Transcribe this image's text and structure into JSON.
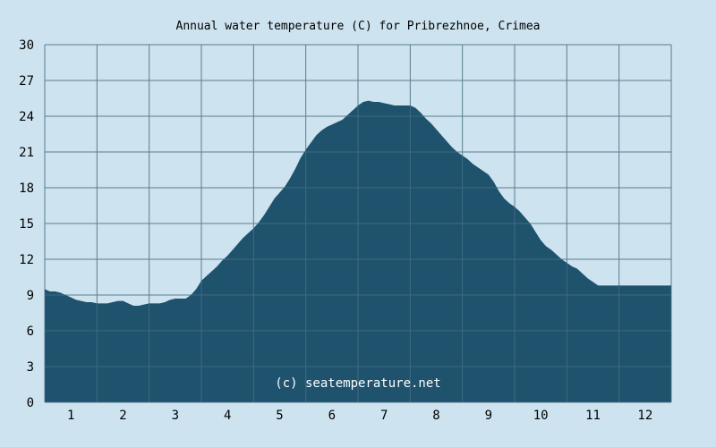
{
  "chart_data": {
    "type": "area",
    "title": "Annual water temperature (C) for Pribrezhnoe, Crimea",
    "xlabel": "",
    "ylabel": "",
    "xlim": [
      0.5,
      12.5
    ],
    "ylim": [
      0,
      30
    ],
    "y_ticks": [
      0,
      3,
      6,
      9,
      12,
      15,
      18,
      21,
      24,
      27,
      30
    ],
    "x_ticks": [
      1,
      2,
      3,
      4,
      5,
      6,
      7,
      8,
      9,
      10,
      11,
      12
    ],
    "grid": true,
    "legend": "none",
    "watermark": "(c) seatemperature.net",
    "colors": {
      "background": "#cde3ef",
      "plot_background": "#cde3ef",
      "fill": "#1f526d",
      "grid_over_fill": "#3d6a82",
      "grid_over_background": "#5a7d90"
    },
    "series": [
      {
        "x": [
          0.5,
          0.6,
          0.7,
          0.8,
          0.9,
          1.0,
          1.1,
          1.2,
          1.3,
          1.4,
          1.5,
          1.6,
          1.7,
          1.8,
          1.9,
          2.0,
          2.1,
          2.2,
          2.3,
          2.4,
          2.5,
          2.6,
          2.7,
          2.8,
          2.9,
          3.0,
          3.1,
          3.2,
          3.3,
          3.4,
          3.5,
          3.6,
          3.7,
          3.8,
          3.9,
          4.0,
          4.1,
          4.2,
          4.3,
          4.4,
          4.5,
          4.6,
          4.7,
          4.8,
          4.9,
          5.0,
          5.1,
          5.2,
          5.3,
          5.4,
          5.5,
          5.6,
          5.7,
          5.8,
          5.9,
          6.0,
          6.1,
          6.2,
          6.3,
          6.4,
          6.5,
          6.6,
          6.7,
          6.8,
          6.9,
          7.0,
          7.1,
          7.2,
          7.3,
          7.4,
          7.5,
          7.6,
          7.7,
          7.8,
          7.9,
          8.0,
          8.1,
          8.2,
          8.3,
          8.4,
          8.5,
          8.6,
          8.7,
          8.8,
          8.9,
          9.0,
          9.1,
          9.2,
          9.3,
          9.4,
          9.5,
          9.6,
          9.7,
          9.8,
          9.9,
          10.0,
          10.1,
          10.2,
          10.3,
          10.4,
          10.5,
          10.6,
          10.7,
          10.8,
          10.9,
          11.0,
          11.1,
          11.2,
          11.3,
          11.4,
          11.5,
          11.6,
          11.7,
          11.8,
          11.9,
          12.0,
          12.1,
          12.2,
          12.3,
          12.4,
          12.5
        ],
        "values": [
          9.5,
          9.3,
          9.3,
          9.2,
          9.0,
          8.8,
          8.6,
          8.5,
          8.4,
          8.4,
          8.3,
          8.3,
          8.3,
          8.4,
          8.5,
          8.5,
          8.3,
          8.1,
          8.1,
          8.2,
          8.3,
          8.3,
          8.3,
          8.4,
          8.6,
          8.7,
          8.7,
          8.7,
          9.0,
          9.5,
          10.2,
          10.6,
          11.0,
          11.4,
          11.9,
          12.3,
          12.8,
          13.3,
          13.8,
          14.2,
          14.6,
          15.1,
          15.7,
          16.4,
          17.1,
          17.6,
          18.1,
          18.8,
          19.6,
          20.5,
          21.2,
          21.8,
          22.4,
          22.8,
          23.1,
          23.3,
          23.5,
          23.7,
          24.1,
          24.5,
          24.9,
          25.2,
          25.3,
          25.2,
          25.2,
          25.1,
          25.0,
          24.9,
          24.9,
          24.9,
          24.9,
          24.7,
          24.3,
          23.8,
          23.4,
          22.9,
          22.4,
          21.9,
          21.4,
          21.0,
          20.7,
          20.4,
          20.0,
          19.7,
          19.4,
          19.1,
          18.5,
          17.7,
          17.1,
          16.7,
          16.4,
          16.0,
          15.5,
          15.0,
          14.3,
          13.6,
          13.1,
          12.8,
          12.4,
          12.0,
          11.7,
          11.4,
          11.2,
          10.8,
          10.4,
          10.1,
          9.8,
          9.8,
          9.8,
          9.8,
          9.8,
          9.8,
          9.8,
          9.8,
          9.8,
          9.8,
          9.8,
          9.8,
          9.8,
          9.8,
          9.8
        ]
      }
    ]
  }
}
